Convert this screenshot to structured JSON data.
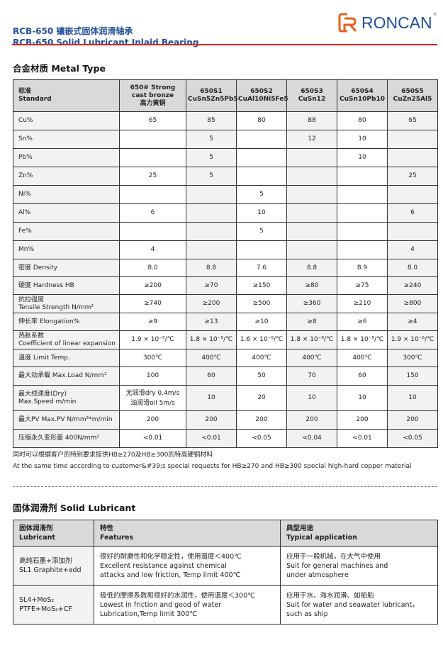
{
  "header": {
    "title_cn": "RCB-650 镶嵌式固体润滑轴承",
    "title_en": "RCB-650 Solid Lubricant Inlaid Bearing",
    "logo_text": "RONCAN",
    "logo_reg": "®",
    "brand_color": "#1f4e9a",
    "accent_color": "#e8601c",
    "rule_color": "#e02020"
  },
  "metal": {
    "title": "合金材质 Metal Type",
    "headers": [
      [
        "标准",
        "Standard"
      ],
      [
        "650# Strong",
        "cast bronze",
        "高力黄铜"
      ],
      [
        "650S1",
        "CuSn5Zn5Pb5"
      ],
      [
        "650S2",
        "CuAl10Ni5Fe5"
      ],
      [
        "650S3",
        "CuSn12"
      ],
      [
        "650S4",
        "CuSn10Pb10"
      ],
      [
        "650S5",
        "CuZn25Al5"
      ]
    ],
    "rows": [
      {
        "label": [
          "Cu%"
        ],
        "values": [
          "65",
          "85",
          "80",
          "88",
          "80",
          "65"
        ]
      },
      {
        "label": [
          "Sn%"
        ],
        "values": [
          "",
          "5",
          "",
          "12",
          "10",
          ""
        ]
      },
      {
        "label": [
          "Pb%"
        ],
        "values": [
          "",
          "5",
          "",
          "",
          "10",
          ""
        ]
      },
      {
        "label": [
          "Zn%"
        ],
        "values": [
          "25",
          "5",
          "",
          "",
          "",
          "25"
        ]
      },
      {
        "label": [
          "Ni%"
        ],
        "values": [
          "",
          "",
          "5",
          "",
          "",
          ""
        ]
      },
      {
        "label": [
          "Al%"
        ],
        "values": [
          "6",
          "",
          "10",
          "",
          "",
          "6"
        ]
      },
      {
        "label": [
          "Fe%"
        ],
        "values": [
          "",
          "",
          "5",
          "",
          "",
          ""
        ]
      },
      {
        "label": [
          "Mn%"
        ],
        "values": [
          "4",
          "",
          "",
          "",
          "",
          "4"
        ]
      },
      {
        "label": [
          "密度 Density"
        ],
        "values": [
          "8.0",
          "8.8",
          "7.6",
          "8.8",
          "8.9",
          "8.0"
        ]
      },
      {
        "label": [
          "硬度 Hardness HB"
        ],
        "values": [
          "≥200",
          "≥70",
          "≥150",
          "≥80",
          "≥75",
          "≥240"
        ]
      },
      {
        "label": [
          "抗拉强度",
          "Tensile Strength N/mm²"
        ],
        "values": [
          "≥740",
          "≥200",
          "≥500",
          "≥360",
          "≥210",
          "≥800"
        ]
      },
      {
        "label": [
          "伸长率 Elongation%"
        ],
        "values": [
          "≥9",
          "≥13",
          "≥10",
          "≥8",
          "≥6",
          "≥4"
        ]
      },
      {
        "label": [
          "热胀系数",
          "Coefficient of linear expansion"
        ],
        "values": [
          "1.9 × 10⁻⁵/℃",
          "1.8 × 10⁻⁵/℃",
          "1.6 × 10⁻⁵/℃",
          "1.8 × 10⁻⁵/℃",
          "1.8 × 10⁻⁵/℃",
          "1.9 × 10⁻⁵/℃"
        ]
      },
      {
        "label": [
          "温度 Limit Temp."
        ],
        "values": [
          "300℃",
          "400℃",
          "400℃",
          "400℃",
          "400℃",
          "300℃"
        ]
      },
      {
        "label": [
          "最大动承载 Max.Load N/mm²"
        ],
        "values": [
          "100",
          "60",
          "50",
          "70",
          "60",
          "150"
        ]
      },
      {
        "label": [
          "最大线速度(Dry)",
          "Max.Speed m/min"
        ],
        "values": [
          "无润滑dry 0.4m/s\n油润滑oil  5m/s",
          "10",
          "20",
          "10",
          "10",
          "10"
        ]
      },
      {
        "label": [
          "最大PV Max.PV  N/mm²*m/min"
        ],
        "values": [
          "200",
          "200",
          "200",
          "200",
          "200",
          "200"
        ]
      },
      {
        "label": [
          "压缩永久变形量 400N/mm²"
        ],
        "values": [
          "<0.01",
          "<0.01",
          "<0.05",
          "<0.04",
          "<0.01",
          "<0.05"
        ]
      }
    ],
    "note_cn": "同时可以根据客户的特别要求提供HB≥270及HB≥300的特高硬铜材料",
    "note_en": "At the same time according to customer&#39;s special requests for HB≥270 and HB≥300 special high-hard copper material"
  },
  "lubricant": {
    "title": "固体润滑剂 Solid Lubricant",
    "headers": [
      [
        "固体润滑剂",
        "Lubricant"
      ],
      [
        "特性",
        "Features"
      ],
      [
        "典型用途",
        "Typical application"
      ]
    ],
    "rows": [
      {
        "lubricant": [
          "高纯石墨+添加剂",
          "SL1 Graphite+add"
        ],
        "features": [
          "很好的耐磨性和化学稳定性，使用温度＜400℃",
          "Excellent resistance against chemical",
          "attacks and low friction, Temp limit 400℃"
        ],
        "application": [
          "应用于一般机械，在大气中使用",
          "Suit for general machines and",
          "under atmosphere"
        ]
      },
      {
        "lubricant": [
          "SL4+MoS₂",
          "PTFE+MoS₂+CF"
        ],
        "features": [
          "极低的摩擦系数和很好的水润性，使用温度＜300℃",
          "Lowest in friction and good of water",
          "Lubrication,Temp limit 300℃"
        ],
        "application": [
          "应用于水、海水润滑、如船舶",
          "Suit for water and seawater lubricant，",
          "such as ship"
        ]
      }
    ]
  }
}
